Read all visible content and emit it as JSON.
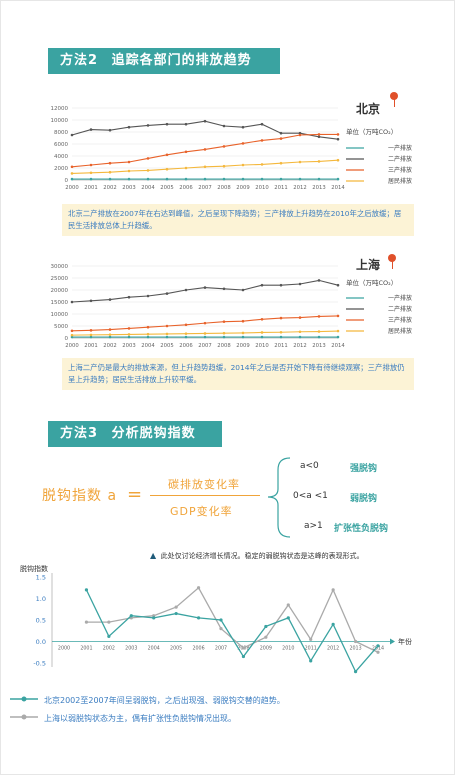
{
  "method2": {
    "num": "方法2",
    "title": "追踪各部门的排放趋势"
  },
  "beijing": {
    "city": "北京",
    "unit": "单位（万吨CO₂）",
    "note": "北京二产排放在2007年在右达到峰值，之后呈现下降趋势；三产排放上升趋势在2010年之后放缓；居民生活排放总体上升趋缓。"
  },
  "shanghai": {
    "city": "上海",
    "unit": "单位（万吨CO₂）",
    "note": "上海二产仍是最大的排放来源，但上升趋势趋缓，2014年之后是否开始下降有待继续观察；三产排放仍呈上升趋势；居民生活排放上升较平缓。"
  },
  "method3": {
    "num": "方法3",
    "title": "分析脱钩指数"
  },
  "formula": {
    "lhs": "脱钩指数 a",
    "eq": "=",
    "numerator": "碳排放变化率",
    "denominator": "GDP变化率",
    "conditions": [
      {
        "cond": "a<0",
        "result": "强脱钩"
      },
      {
        "cond": "0<a <1",
        "result": "弱脱钩"
      },
      {
        "cond": "a>1",
        "result": "扩张性负脱钩"
      }
    ],
    "caption": "此处仅讨论经济增长情况。稳定的弱脱钩状态是达峰的表现形式。"
  },
  "legend_bottom": [
    {
      "label": "北京2002至2007年间呈弱脱钩，之后出现强、弱脱钩交替的趋势。",
      "color": "#3aa3a1"
    },
    {
      "label": "上海以弱脱钩状态为主，偶有扩张性负脱钩情况出现。",
      "color": "#aaaaaa"
    }
  ],
  "chart_data": [
    {
      "type": "line",
      "title": "北京",
      "x": [
        "2000",
        "2001",
        "2002",
        "2003",
        "2004",
        "2005",
        "2006",
        "2007",
        "2008",
        "2009",
        "2010",
        "2011",
        "2012",
        "2013",
        "2014"
      ],
      "ylim": [
        0,
        12000
      ],
      "yticks": [
        "0",
        "2000",
        "4000",
        "6000",
        "8000",
        "10000",
        "12000"
      ],
      "series": [
        {
          "name": "一产排放",
          "color": "#3aa3a1",
          "values": [
            150,
            150,
            150,
            150,
            150,
            150,
            150,
            150,
            150,
            150,
            150,
            150,
            150,
            150,
            150
          ]
        },
        {
          "name": "二产排放",
          "color": "#555555",
          "values": [
            7500,
            8400,
            8300,
            8800,
            9100,
            9300,
            9300,
            9800,
            9000,
            8800,
            9300,
            7800,
            7800,
            7200,
            6800
          ]
        },
        {
          "name": "三产排放",
          "color": "#e8622a",
          "values": [
            2200,
            2500,
            2800,
            3000,
            3600,
            4200,
            4700,
            5100,
            5600,
            6100,
            6600,
            6900,
            7500,
            7600,
            7600
          ]
        },
        {
          "name": "居民排放",
          "color": "#f4b83d",
          "values": [
            1100,
            1200,
            1300,
            1500,
            1600,
            1800,
            2000,
            2200,
            2300,
            2500,
            2600,
            2800,
            3000,
            3100,
            3300
          ]
        }
      ]
    },
    {
      "type": "line",
      "title": "上海",
      "x": [
        "2000",
        "2001",
        "2002",
        "2003",
        "2004",
        "2005",
        "2006",
        "2007",
        "2008",
        "2009",
        "2010",
        "2011",
        "2012",
        "2013",
        "2014"
      ],
      "ylim": [
        0,
        30000
      ],
      "yticks": [
        "0",
        "5000",
        "10000",
        "15000",
        "20000",
        "25000",
        "30000"
      ],
      "series": [
        {
          "name": "一产排放",
          "color": "#3aa3a1",
          "values": [
            400,
            400,
            400,
            400,
            400,
            400,
            400,
            400,
            400,
            400,
            400,
            400,
            400,
            400,
            400
          ]
        },
        {
          "name": "二产排放",
          "color": "#555555",
          "values": [
            15000,
            15500,
            16000,
            17000,
            17500,
            18500,
            20000,
            21000,
            20500,
            20000,
            22000,
            22000,
            22500,
            24000,
            22000
          ]
        },
        {
          "name": "三产排放",
          "color": "#e8622a",
          "values": [
            3000,
            3200,
            3500,
            4000,
            4500,
            5000,
            5500,
            6200,
            6800,
            7000,
            7800,
            8300,
            8500,
            9000,
            9200
          ]
        },
        {
          "name": "居民排放",
          "color": "#f4b83d",
          "values": [
            1200,
            1300,
            1400,
            1500,
            1600,
            1700,
            1800,
            1900,
            2000,
            2100,
            2300,
            2400,
            2600,
            2700,
            2900
          ]
        }
      ]
    },
    {
      "type": "line",
      "title": "",
      "ylabel": "脱钩指数",
      "xlabel": "年份",
      "x": [
        "2000",
        "2001",
        "2002",
        "2003",
        "2004",
        "2005",
        "2006",
        "2007",
        "2008",
        "2009",
        "2010",
        "2011",
        "2012",
        "2013",
        "2014"
      ],
      "ylim": [
        -0.5,
        1.5
      ],
      "yticks": [
        "-0.5",
        "0.0",
        "0.5",
        "1.0",
        "1.5"
      ],
      "series": [
        {
          "name": "北京",
          "color": "#3aa3a1",
          "x": [
            "2001",
            "2002",
            "2003",
            "2004",
            "2005",
            "2006",
            "2007",
            "2008",
            "2009",
            "2010",
            "2011",
            "2012",
            "2013",
            "2014"
          ],
          "values": [
            1.2,
            0.12,
            0.6,
            0.55,
            0.65,
            0.55,
            0.5,
            -0.35,
            0.35,
            0.55,
            -0.45,
            0.4,
            -0.7,
            -0.1
          ]
        },
        {
          "name": "上海",
          "color": "#aaaaaa",
          "x": [
            "2001",
            "2002",
            "2003",
            "2004",
            "2005",
            "2006",
            "2007",
            "2008",
            "2009",
            "2010",
            "2011",
            "2012",
            "2013",
            "2014"
          ],
          "values": [
            0.45,
            0.45,
            0.55,
            0.6,
            0.8,
            1.25,
            0.3,
            -0.15,
            0.1,
            0.85,
            0.05,
            1.2,
            0.0,
            -0.25
          ]
        }
      ]
    }
  ]
}
